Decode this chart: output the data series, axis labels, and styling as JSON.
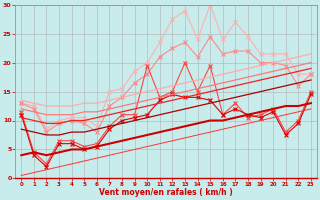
{
  "xlabel": "Vent moyen/en rafales ( km/h )",
  "background_color": "#c8ecec",
  "grid_color": "#b0b0b0",
  "xlim": [
    -0.5,
    23.5
  ],
  "ylim": [
    0,
    30
  ],
  "xticks": [
    0,
    1,
    2,
    3,
    4,
    5,
    6,
    7,
    8,
    9,
    10,
    11,
    12,
    13,
    14,
    15,
    16,
    17,
    18,
    19,
    20,
    21,
    22,
    23
  ],
  "yticks": [
    0,
    5,
    10,
    15,
    20,
    25,
    30
  ],
  "series": [
    {
      "color": "#ffb0b0",
      "linewidth": 0.8,
      "marker": "x",
      "markersize": 3,
      "y": [
        13.0,
        12.5,
        8.5,
        10.0,
        10.5,
        10.5,
        9.0,
        15.0,
        15.5,
        18.5,
        20.0,
        23.5,
        27.5,
        29.0,
        24.0,
        30.0,
        24.0,
        27.0,
        24.5,
        21.5,
        21.5,
        21.5,
        18.0,
        18.0
      ]
    },
    {
      "color": "#ff8888",
      "linewidth": 0.8,
      "marker": "x",
      "markersize": 3,
      "y": [
        13.0,
        12.0,
        8.0,
        9.5,
        10.0,
        9.5,
        8.0,
        12.5,
        14.0,
        16.5,
        18.0,
        21.0,
        22.5,
        23.5,
        21.0,
        24.5,
        21.5,
        22.0,
        22.0,
        20.0,
        20.0,
        19.5,
        16.0,
        18.0
      ]
    },
    {
      "color": "#ff4444",
      "linewidth": 0.8,
      "marker": "x",
      "markersize": 3,
      "y": [
        11.5,
        4.5,
        2.5,
        6.5,
        6.5,
        5.5,
        6.0,
        9.0,
        11.0,
        11.0,
        19.5,
        14.0,
        15.0,
        20.0,
        15.0,
        19.5,
        11.0,
        13.0,
        10.5,
        11.0,
        12.0,
        8.0,
        10.0,
        15.0
      ]
    },
    {
      "color": "#dd0000",
      "linewidth": 0.8,
      "marker": "x",
      "markersize": 3,
      "y": [
        11.0,
        4.0,
        2.0,
        6.0,
        6.0,
        5.0,
        5.5,
        8.5,
        10.0,
        10.5,
        11.0,
        13.5,
        14.5,
        14.0,
        14.0,
        13.5,
        11.0,
        12.0,
        11.0,
        10.5,
        11.5,
        7.5,
        9.5,
        14.5
      ]
    },
    {
      "color": "#ffaaaa",
      "linewidth": 0.9,
      "marker": null,
      "y": [
        13.5,
        13.0,
        12.5,
        12.5,
        12.5,
        13.0,
        13.0,
        13.5,
        14.0,
        14.5,
        15.0,
        15.5,
        16.0,
        16.5,
        17.0,
        17.5,
        18.0,
        18.5,
        19.0,
        19.5,
        20.0,
        20.5,
        21.0,
        21.5
      ]
    },
    {
      "color": "#ff7777",
      "linewidth": 0.9,
      "marker": null,
      "y": [
        12.0,
        11.5,
        11.0,
        11.0,
        11.0,
        11.5,
        11.5,
        12.0,
        12.5,
        13.0,
        13.5,
        14.0,
        14.5,
        15.0,
        15.5,
        16.0,
        16.5,
        17.0,
        17.5,
        18.0,
        18.5,
        19.0,
        19.5,
        20.0
      ]
    },
    {
      "color": "#ee2222",
      "linewidth": 0.9,
      "marker": null,
      "y": [
        10.5,
        10.0,
        9.5,
        9.5,
        10.0,
        10.0,
        10.5,
        11.0,
        11.5,
        12.0,
        12.5,
        13.0,
        13.5,
        14.0,
        14.5,
        15.0,
        15.5,
        16.0,
        16.5,
        17.0,
        17.5,
        18.0,
        18.5,
        19.0
      ]
    },
    {
      "color": "#aa0000",
      "linewidth": 0.9,
      "marker": null,
      "y": [
        8.5,
        8.0,
        7.5,
        7.5,
        8.0,
        8.0,
        8.5,
        9.0,
        9.5,
        10.0,
        10.5,
        11.0,
        11.5,
        12.0,
        12.5,
        13.0,
        13.5,
        14.0,
        14.5,
        15.0,
        15.5,
        16.0,
        16.5,
        17.0
      ]
    },
    {
      "color": "#cc0000",
      "linewidth": 1.5,
      "marker": null,
      "y": [
        4.0,
        4.5,
        4.0,
        4.5,
        5.0,
        5.0,
        5.5,
        6.0,
        6.5,
        7.0,
        7.5,
        8.0,
        8.5,
        9.0,
        9.5,
        10.0,
        10.0,
        10.5,
        11.0,
        11.5,
        12.0,
        12.5,
        12.5,
        13.0
      ]
    },
    {
      "color": "#ff3333",
      "linewidth": 0.7,
      "marker": null,
      "y": [
        0.5,
        1.0,
        1.5,
        2.0,
        2.5,
        3.0,
        3.5,
        4.0,
        4.5,
        5.0,
        5.5,
        6.0,
        6.5,
        7.0,
        7.5,
        8.0,
        8.5,
        9.0,
        9.5,
        10.0,
        10.5,
        11.0,
        11.5,
        12.0
      ]
    }
  ]
}
